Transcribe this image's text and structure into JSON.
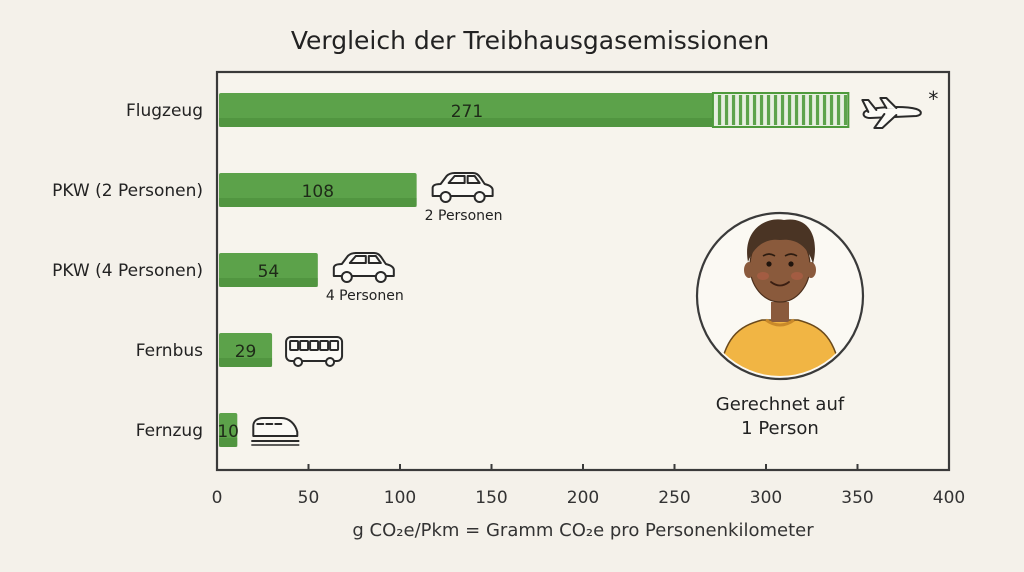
{
  "chart_data": {
    "type": "bar",
    "orientation": "horizontal",
    "title": "Vergleich der Treibhausgasemissionen",
    "xlabel": "g CO₂e/Pkm = Gramm CO₂e pro Personenkilometer",
    "ylabel": "",
    "xlim": [
      0,
      400
    ],
    "x_ticks": [
      "0",
      "50",
      "100",
      "150",
      "200",
      "250",
      "300",
      "350",
      "400"
    ],
    "categories": [
      "Flugzeug",
      "PKW (2 Personen)",
      "PKW (4 Personen)",
      "Fernbus",
      "Fernzug"
    ],
    "values": [
      271,
      108,
      54,
      29,
      10
    ],
    "value_labels": [
      "271",
      "108",
      "54",
      "29",
      "10"
    ],
    "extra_segment": {
      "category": "Flugzeug",
      "from": 271,
      "to": 345,
      "style": "hatched"
    },
    "bar_color": "#4e9a3c",
    "grid": false,
    "annotations": [
      {
        "category": "Flugzeug",
        "icon": "airplane-icon",
        "text": "*"
      },
      {
        "category": "PKW (2 Personen)",
        "icon": "car-icon",
        "text": "2 Personen"
      },
      {
        "category": "PKW (4 Personen)",
        "icon": "car-icon",
        "text": "4 Personen"
      },
      {
        "category": "Fernbus",
        "icon": "bus-icon",
        "text": ""
      },
      {
        "category": "Fernzug",
        "icon": "train-icon",
        "text": ""
      }
    ]
  },
  "person": {
    "caption_line1": "Gerechnet auf",
    "caption_line2": "1 Person",
    "icon": "person-avatar-icon",
    "shirt_color": "#f1b544",
    "skin_color": "#8a5a3c",
    "hair_color": "#4a3424"
  }
}
